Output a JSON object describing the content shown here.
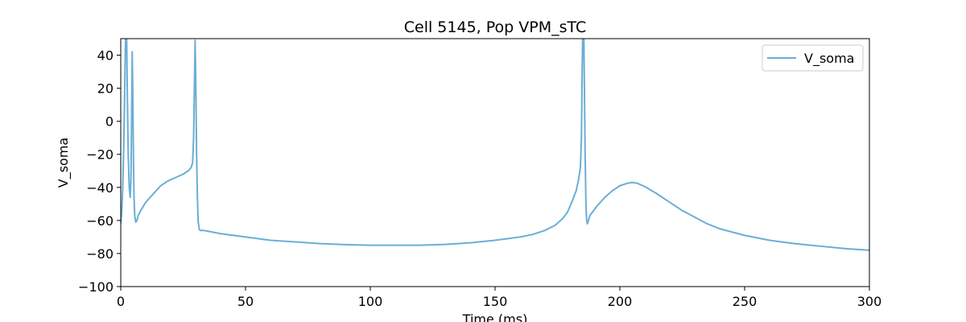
{
  "chart_data": {
    "type": "line",
    "title": "Cell 5145, Pop VPM_sTC",
    "xlabel": "Time (ms)",
    "ylabel": "V_soma",
    "xlim": [
      0,
      300
    ],
    "ylim": [
      -100,
      50
    ],
    "xticks": [
      0,
      50,
      100,
      150,
      200,
      250,
      300
    ],
    "yticks": [
      -100,
      -80,
      -60,
      -40,
      -20,
      0,
      20,
      40
    ],
    "grid": false,
    "legend_position": "top-right",
    "series": [
      {
        "name": "V_soma",
        "color": "#6baed6",
        "x": [
          0,
          0.4,
          0.8,
          1.2,
          1.5,
          1.8,
          2.0,
          2.3,
          2.6,
          3.0,
          3.4,
          3.8,
          4.1,
          4.4,
          4.6,
          4.8,
          5.0,
          5.3,
          5.6,
          6.0,
          6.5,
          7.0,
          8,
          10,
          13,
          16,
          19,
          22,
          25,
          27,
          28.2,
          28.8,
          29.2,
          29.5,
          29.8,
          30.1,
          30.4,
          30.7,
          31.0,
          31.4,
          31.8,
          32.3,
          33,
          35,
          40,
          50,
          60,
          70,
          80,
          90,
          100,
          110,
          120,
          130,
          140,
          150,
          160,
          165,
          170,
          174,
          177,
          179,
          181,
          182.5,
          183.5,
          184.2,
          184.6,
          184.9,
          185.2,
          185.5,
          185.8,
          186.1,
          186.4,
          186.7,
          187.0,
          187.4,
          188,
          189,
          191,
          194,
          197,
          200,
          203,
          205,
          207,
          210,
          215,
          220,
          225,
          230,
          235,
          240,
          250,
          260,
          270,
          280,
          290,
          300
        ],
        "y": [
          -62,
          -55,
          -40,
          -15,
          10,
          40,
          55,
          60,
          20,
          -20,
          -40,
          -46,
          -35,
          10,
          42,
          20,
          -10,
          -45,
          -57,
          -61,
          -60,
          -57,
          -54,
          -49,
          -44,
          -39,
          -36,
          -34,
          -32,
          -30,
          -28,
          -25,
          -10,
          20,
          49,
          20,
          -20,
          -45,
          -60,
          -65,
          -66,
          -66,
          -66,
          -66.5,
          -68,
          -70,
          -72,
          -73,
          -74,
          -74.6,
          -75,
          -75,
          -75,
          -74.5,
          -73.5,
          -72,
          -70,
          -68.5,
          -66,
          -63,
          -59,
          -55,
          -48,
          -42,
          -35,
          -28,
          -10,
          30,
          60,
          60,
          20,
          -20,
          -50,
          -60,
          -62,
          -60,
          -57,
          -55,
          -51,
          -46,
          -42,
          -39,
          -37.5,
          -37,
          -37.5,
          -39.5,
          -44,
          -49,
          -54,
          -58,
          -62,
          -65,
          -69,
          -72,
          -74,
          -75.5,
          -77,
          -78
        ]
      }
    ]
  }
}
